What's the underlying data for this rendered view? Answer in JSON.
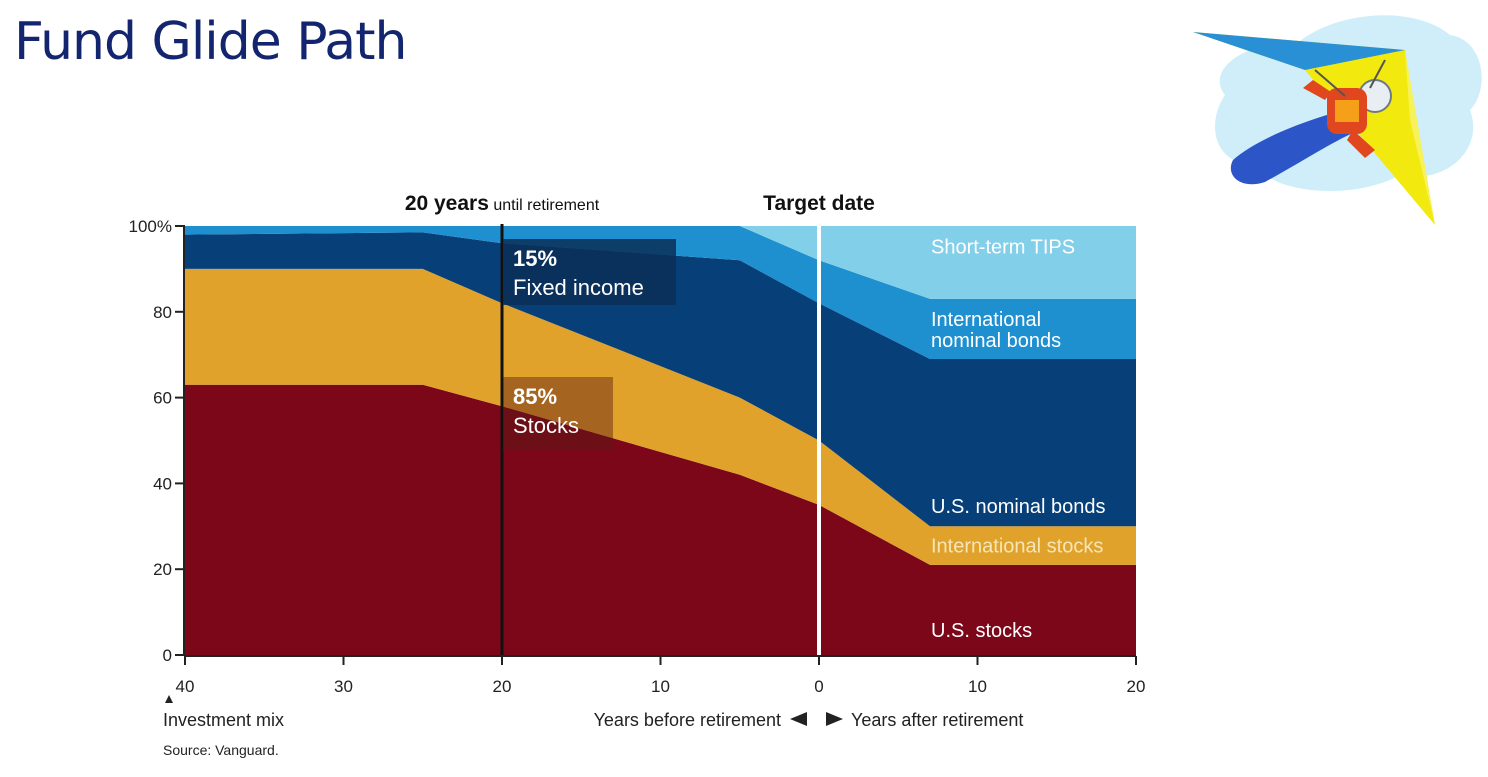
{
  "slide": {
    "title": "Fund Glide Path"
  },
  "chart_data": {
    "type": "area",
    "stacked": true,
    "x_direction": "years relative to target date (negative = before retirement)",
    "x": [
      -40,
      -25,
      -20,
      -5,
      0,
      7,
      20
    ],
    "series": [
      {
        "name": "U.S. stocks",
        "color": "#7b0719",
        "values": [
          63,
          63,
          58,
          42,
          35,
          21,
          21
        ]
      },
      {
        "name": "International stocks",
        "color": "#e0a22b",
        "values": [
          27,
          27,
          24,
          18,
          15,
          9,
          9
        ]
      },
      {
        "name": "U.S. nominal bonds",
        "color": "#073f78",
        "values": [
          8,
          8.5,
          14,
          32,
          32,
          39,
          39
        ]
      },
      {
        "name": "International nominal bonds",
        "color": "#1e8fcf",
        "values": [
          2,
          1.5,
          4,
          8,
          10,
          14,
          14
        ]
      },
      {
        "name": "Short-term TIPS",
        "color": "#82cfe9",
        "values": [
          0,
          0,
          0,
          0,
          8,
          17,
          17
        ]
      }
    ],
    "series_label_lines": {
      "U.S. stocks": [
        "U.S. stocks"
      ],
      "International stocks": [
        "International stocks"
      ],
      "U.S. nominal bonds": [
        "U.S. nominal bonds"
      ],
      "International nominal bonds": [
        "International",
        "nominal bonds"
      ],
      "Short-term TIPS": [
        "Short-term TIPS"
      ]
    },
    "ylim": [
      0,
      100
    ],
    "xlim": [
      -40,
      20
    ],
    "y_ticks": [
      "0",
      "20",
      "40",
      "60",
      "80",
      "100%"
    ],
    "y_tick_values": [
      0,
      20,
      40,
      60,
      80,
      100
    ],
    "x_ticks": [
      "40",
      "30",
      "20",
      "10",
      "0",
      "10",
      "20"
    ],
    "x_tick_values": [
      -40,
      -30,
      -20,
      -10,
      0,
      10,
      20
    ],
    "xlabel_left": "Years before retirement",
    "xlabel_right": "Years after retirement",
    "corner_label": "Investment mix",
    "source": "Source: Vanguard.",
    "markers": [
      {
        "x": -20,
        "label_bold": "20 years",
        "label_rest": "until retirement",
        "color": "#111111"
      },
      {
        "x": 0,
        "label_bold": "Target date",
        "label_rest": "",
        "color": "#ffffff"
      }
    ],
    "callouts": [
      {
        "value": "15%",
        "label": "Fixed income"
      },
      {
        "value": "85%",
        "label": "Stocks"
      }
    ],
    "grid": false,
    "legend": "inline labels at right"
  }
}
